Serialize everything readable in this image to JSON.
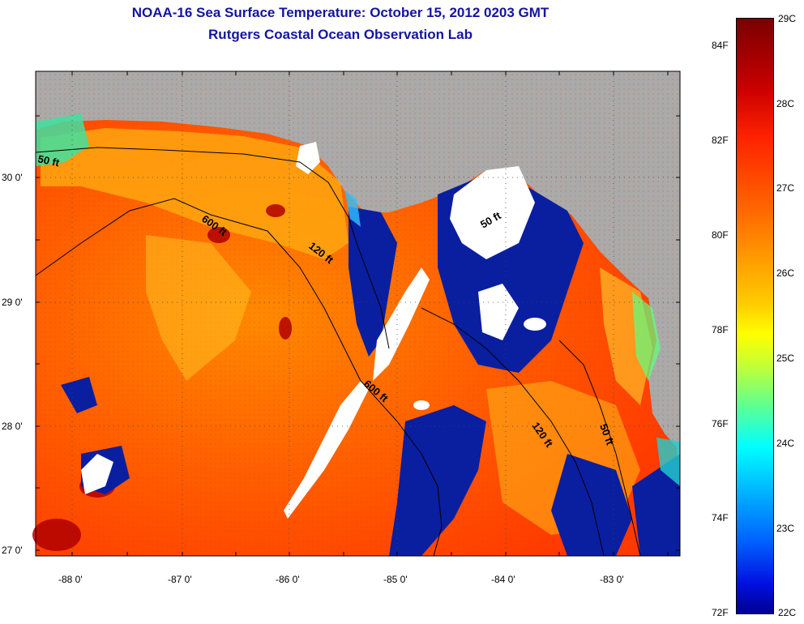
{
  "header": {
    "title": "NOAA-16 Sea Surface Temperature:  October 15, 2012 0203 GMT",
    "subtitle": "Rutgers Coastal Ocean Observation Lab"
  },
  "map": {
    "lat_labels": [
      "30 0'",
      "29 0'",
      "28 0'",
      "27 0'"
    ],
    "lon_labels": [
      "-88 0'",
      "-87 0'",
      "-86 0'",
      "-85 0'",
      "-84 0'",
      "-83 0'"
    ],
    "contour_labels": [
      "50 ft",
      "600 ft",
      "120 ft",
      "50 ft",
      "600 ft",
      "120 ft",
      "50 ft"
    ],
    "colors": {
      "land": "#aaaaaa",
      "cloud": "#ffffff",
      "warm": "#ff6a00",
      "cool": "#0a1ea0"
    }
  },
  "colorbar": {
    "fahrenheit": [
      "84F",
      "82F",
      "80F",
      "78F",
      "76F",
      "74F",
      "72F"
    ],
    "celsius": [
      "29C",
      "28C",
      "27C",
      "26C",
      "25C",
      "24C",
      "23C",
      "22C"
    ]
  }
}
